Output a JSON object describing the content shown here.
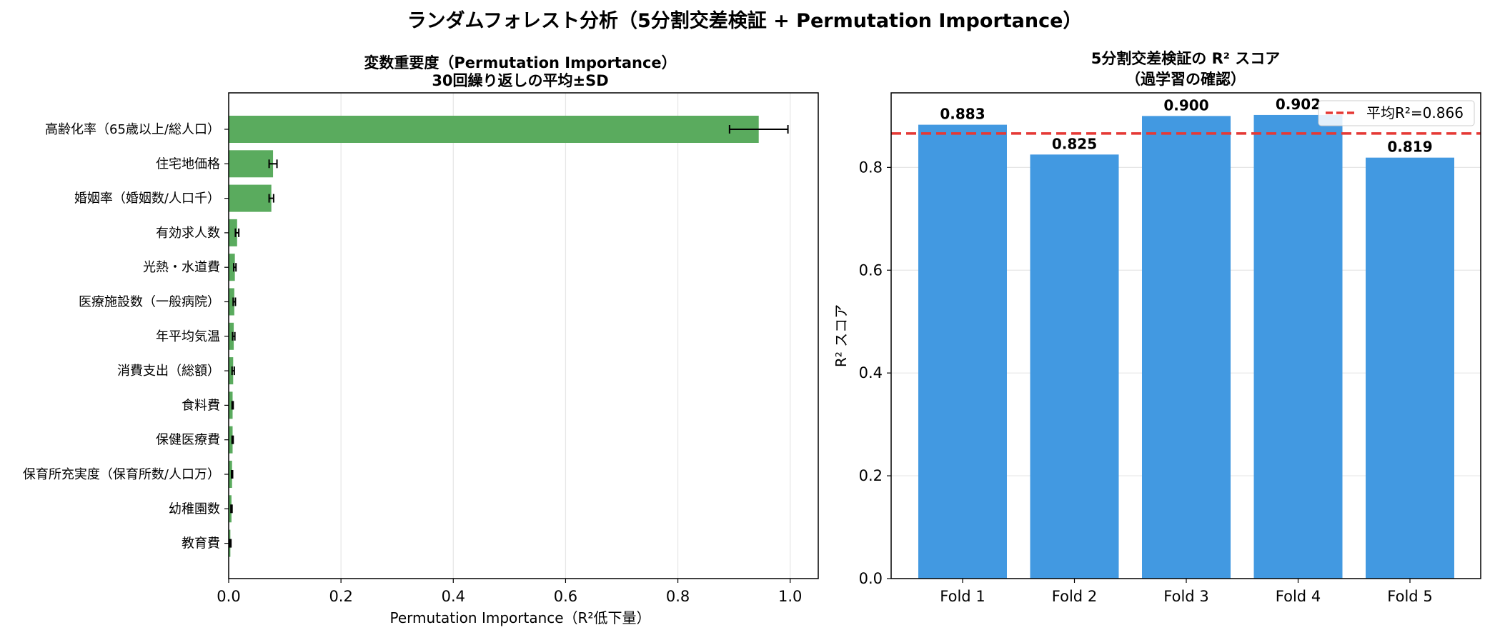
{
  "figure": {
    "title": "ランダムフォレスト分析（5分割交差検証 + Permutation Importance）"
  },
  "chart_data": [
    {
      "type": "bar",
      "orientation": "horizontal",
      "title": "変数重要度（Permutation Importance）",
      "subtitle": "30回繰り返しの平均±SD",
      "xlabel": "Permutation Importance（R²低下量）",
      "ylabel": "",
      "xlim": [
        0.0,
        1.05
      ],
      "xticks": [
        0.0,
        0.2,
        0.4,
        0.6,
        0.8,
        1.0
      ],
      "xtick_labels": [
        "0.0",
        "0.2",
        "0.4",
        "0.6",
        "0.8",
        "1.0"
      ],
      "grid": "x",
      "bar_color": "#5aab5e",
      "categories": [
        "高齢化率（65歳以上/総人口）",
        "住宅地価格",
        "婚姻率（婚姻数/人口千）",
        "有効求人数",
        "光熱・水道費",
        "医療施設数（一般病院）",
        "年平均気温",
        "消費支出（総額）",
        "食料費",
        "保健医療費",
        "保育所充実度（保育所数/人口万）",
        "幼稚園数",
        "教育費"
      ],
      "values": [
        0.944,
        0.079,
        0.076,
        0.015,
        0.011,
        0.01,
        0.009,
        0.008,
        0.007,
        0.007,
        0.006,
        0.005,
        0.003
      ],
      "errors": [
        0.052,
        0.007,
        0.004,
        0.003,
        0.002,
        0.002,
        0.002,
        0.002,
        0.001,
        0.001,
        0.001,
        0.001,
        0.001
      ]
    },
    {
      "type": "bar",
      "title": "5分割交差検証の R² スコア",
      "subtitle": "（過学習の確認）",
      "xlabel": "",
      "ylabel": "R² スコア",
      "ylim": [
        0.0,
        0.945
      ],
      "yticks": [
        0.0,
        0.2,
        0.4,
        0.6,
        0.8
      ],
      "ytick_labels": [
        "0.0",
        "0.2",
        "0.4",
        "0.6",
        "0.8"
      ],
      "grid": "y",
      "bar_color": "#4299e1",
      "categories": [
        "Fold 1",
        "Fold 2",
        "Fold 3",
        "Fold 4",
        "Fold 5"
      ],
      "values": [
        0.883,
        0.825,
        0.9,
        0.902,
        0.819
      ],
      "value_labels": [
        "0.883",
        "0.825",
        "0.900",
        "0.902",
        "0.819"
      ],
      "mean_line": {
        "value": 0.866,
        "color": "#e53935",
        "label": "平均R²=0.866"
      },
      "legend": "top-right"
    }
  ]
}
